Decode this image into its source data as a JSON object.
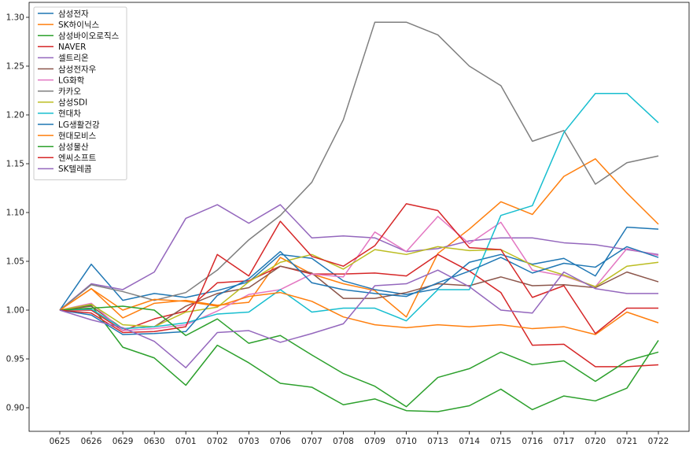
{
  "chart_data": {
    "type": "line",
    "title": "",
    "xlabel": "",
    "ylabel": "",
    "ylim": [
      0.875,
      1.31
    ],
    "yticks": [
      "0.90",
      "0.95",
      "1.00",
      "1.05",
      "1.10",
      "1.15",
      "1.20",
      "1.25",
      "1.30"
    ],
    "legend_position": "top-left",
    "grid": false,
    "categories": [
      "0625",
      "0626",
      "0629",
      "0630",
      "0701",
      "0702",
      "0703",
      "0706",
      "0707",
      "0708",
      "0709",
      "0710",
      "0713",
      "0714",
      "0715",
      "0716",
      "0717",
      "0720",
      "0721",
      "0722"
    ],
    "series": [
      {
        "name": "삼성전자",
        "color": "#1f77b4",
        "values": [
          1.0,
          1.047,
          1.01,
          1.017,
          1.013,
          1.02,
          1.029,
          1.057,
          1.053,
          1.03,
          1.021,
          1.016,
          1.022,
          1.049,
          1.057,
          1.047,
          1.053,
          1.035,
          1.085,
          1.083
        ]
      },
      {
        "name": "SK하이닉스",
        "color": "#ff7f0e",
        "values": [
          1.0,
          1.022,
          0.992,
          1.007,
          1.01,
          1.005,
          1.008,
          1.054,
          1.037,
          1.027,
          1.02,
          0.993,
          1.058,
          1.083,
          1.111,
          1.098,
          1.137,
          1.155,
          1.12,
          1.088
        ]
      },
      {
        "name": "삼성바이오로직스",
        "color": "#2ca02c",
        "values": [
          1.0,
          1.005,
          0.962,
          0.951,
          0.923,
          0.964,
          0.946,
          0.925,
          0.921,
          0.903,
          0.909,
          0.897,
          0.896,
          0.902,
          0.919,
          0.898,
          0.912,
          0.907,
          0.92,
          0.969
        ]
      },
      {
        "name": "NAVER",
        "color": "#d62728",
        "values": [
          1.0,
          1.0,
          0.979,
          0.991,
          0.999,
          1.028,
          1.03,
          1.045,
          1.037,
          1.037,
          1.038,
          1.035,
          1.057,
          1.04,
          1.018,
          0.964,
          0.965,
          0.942,
          0.942,
          0.944
        ]
      },
      {
        "name": "셀트리온",
        "color": "#9467bd",
        "values": [
          1.0,
          1.027,
          1.021,
          1.039,
          1.094,
          1.108,
          1.089,
          1.108,
          1.074,
          1.076,
          1.074,
          1.06,
          1.063,
          1.071,
          1.074,
          1.074,
          1.069,
          1.067,
          1.062,
          1.057
        ]
      },
      {
        "name": "삼성전자우",
        "color": "#8c564b",
        "values": [
          1.0,
          1.004,
          0.981,
          0.983,
          1.004,
          1.017,
          1.023,
          1.045,
          1.038,
          1.012,
          1.012,
          1.018,
          1.027,
          1.025,
          1.034,
          1.025,
          1.026,
          1.023,
          1.039,
          1.029
        ]
      },
      {
        "name": "LG화학",
        "color": "#e377c2",
        "values": [
          1.0,
          1.007,
          0.979,
          0.981,
          0.985,
          0.999,
          1.016,
          1.021,
          1.037,
          1.034,
          1.08,
          1.06,
          1.096,
          1.068,
          1.09,
          1.041,
          1.035,
          1.024,
          1.063,
          1.056
        ]
      },
      {
        "name": "카카오",
        "color": "#7f7f7f",
        "values": [
          1.0,
          1.026,
          1.019,
          1.01,
          1.018,
          1.041,
          1.072,
          1.097,
          1.131,
          1.195,
          1.295,
          1.295,
          1.282,
          1.25,
          1.23,
          1.173,
          1.184,
          1.129,
          1.151,
          1.158
        ]
      },
      {
        "name": "삼성SDI",
        "color": "#bcbd22",
        "values": [
          1.0,
          1.006,
          0.985,
          0.983,
          0.998,
          1.003,
          1.029,
          1.049,
          1.057,
          1.042,
          1.062,
          1.057,
          1.065,
          1.061,
          1.062,
          1.046,
          1.036,
          1.024,
          1.045,
          1.049
        ]
      },
      {
        "name": "현대차",
        "color": "#17becf",
        "values": [
          1.0,
          1.001,
          0.981,
          0.983,
          0.987,
          0.996,
          0.998,
          1.021,
          0.998,
          1.002,
          1.002,
          0.989,
          1.021,
          1.021,
          1.097,
          1.107,
          1.182,
          1.222,
          1.222,
          1.192
        ]
      },
      {
        "name": "LG생활건강",
        "color": "#1f77b4",
        "values": [
          1.0,
          0.995,
          0.975,
          0.976,
          0.978,
          1.015,
          1.032,
          1.06,
          1.028,
          1.021,
          1.017,
          1.014,
          1.028,
          1.04,
          1.054,
          1.038,
          1.048,
          1.044,
          1.065,
          1.054
        ]
      },
      {
        "name": "현대모비스",
        "color": "#ff7f0e",
        "values": [
          1.0,
          1.022,
          1.0,
          1.011,
          1.009,
          1.004,
          1.014,
          1.018,
          1.009,
          0.993,
          0.985,
          0.982,
          0.985,
          0.983,
          0.985,
          0.981,
          0.983,
          0.975,
          0.998,
          0.987
        ]
      },
      {
        "name": "삼성물산",
        "color": "#2ca02c",
        "values": [
          1.0,
          1.002,
          1.004,
          1.0,
          0.974,
          0.991,
          0.966,
          0.974,
          0.954,
          0.935,
          0.922,
          0.901,
          0.931,
          0.94,
          0.957,
          0.944,
          0.948,
          0.927,
          0.948,
          0.957
        ]
      },
      {
        "name": "엔씨소프트",
        "color": "#d62728",
        "values": [
          1.0,
          0.997,
          0.977,
          0.978,
          0.983,
          1.057,
          1.035,
          1.091,
          1.055,
          1.045,
          1.066,
          1.109,
          1.102,
          1.064,
          1.062,
          1.013,
          1.025,
          0.976,
          1.002,
          1.002
        ]
      },
      {
        "name": "SK텔레콤",
        "color": "#9467bd",
        "values": [
          1.0,
          0.99,
          0.982,
          0.968,
          0.941,
          0.977,
          0.979,
          0.967,
          0.976,
          0.986,
          1.025,
          1.027,
          1.041,
          1.024,
          1.0,
          0.997,
          1.039,
          1.022,
          1.017,
          1.017
        ]
      }
    ]
  }
}
